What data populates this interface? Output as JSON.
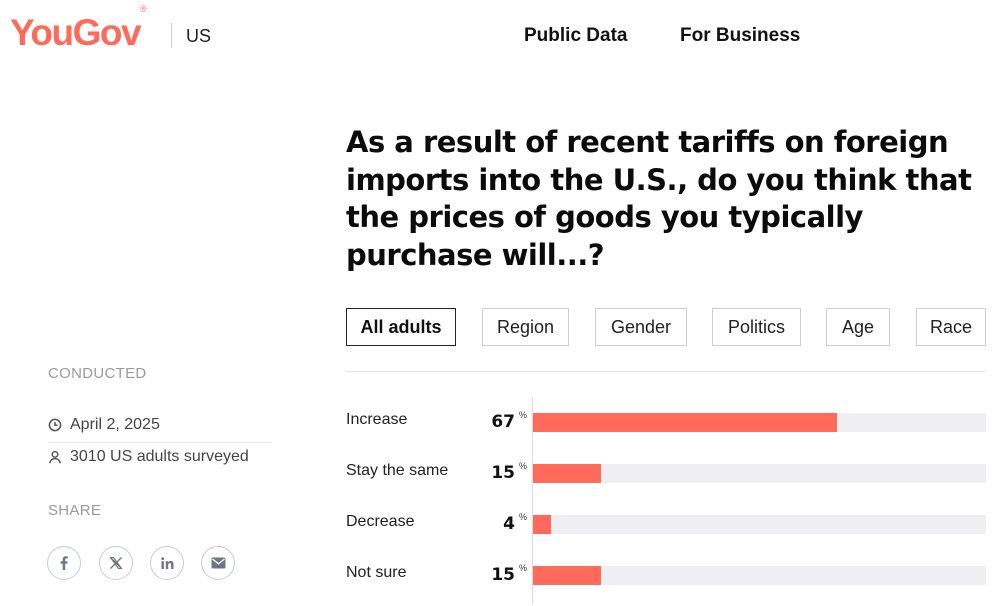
{
  "header": {
    "logo_text": "YouGov",
    "logo_mark": "®",
    "region": "US",
    "nav": [
      "Public Data",
      "For Business"
    ]
  },
  "question": "As a result of recent tariffs on foreign imports into the U.S., do you think that the prices of goods you typically purchase will...?",
  "filters": {
    "tabs": [
      "All adults",
      "Region",
      "Gender",
      "Politics",
      "Age",
      "Race"
    ],
    "active": "All adults"
  },
  "sidebar": {
    "conducted_heading": "CONDUCTED",
    "date": "April 2, 2025",
    "sample": "3010 US adults surveyed",
    "share_heading": "SHARE",
    "share_icons": [
      "facebook-icon",
      "x-icon",
      "linkedin-icon",
      "email-icon"
    ]
  },
  "colors": {
    "brand": "#ff6a5a",
    "bar": "#ff6a5a",
    "track": "#efeff2"
  },
  "chart_data": {
    "type": "bar",
    "orientation": "horizontal",
    "categories": [
      "Increase",
      "Stay the same",
      "Decrease",
      "Not sure"
    ],
    "values": [
      67,
      15,
      4,
      15
    ],
    "value_suffix": "%",
    "xlim": [
      0,
      100
    ]
  }
}
